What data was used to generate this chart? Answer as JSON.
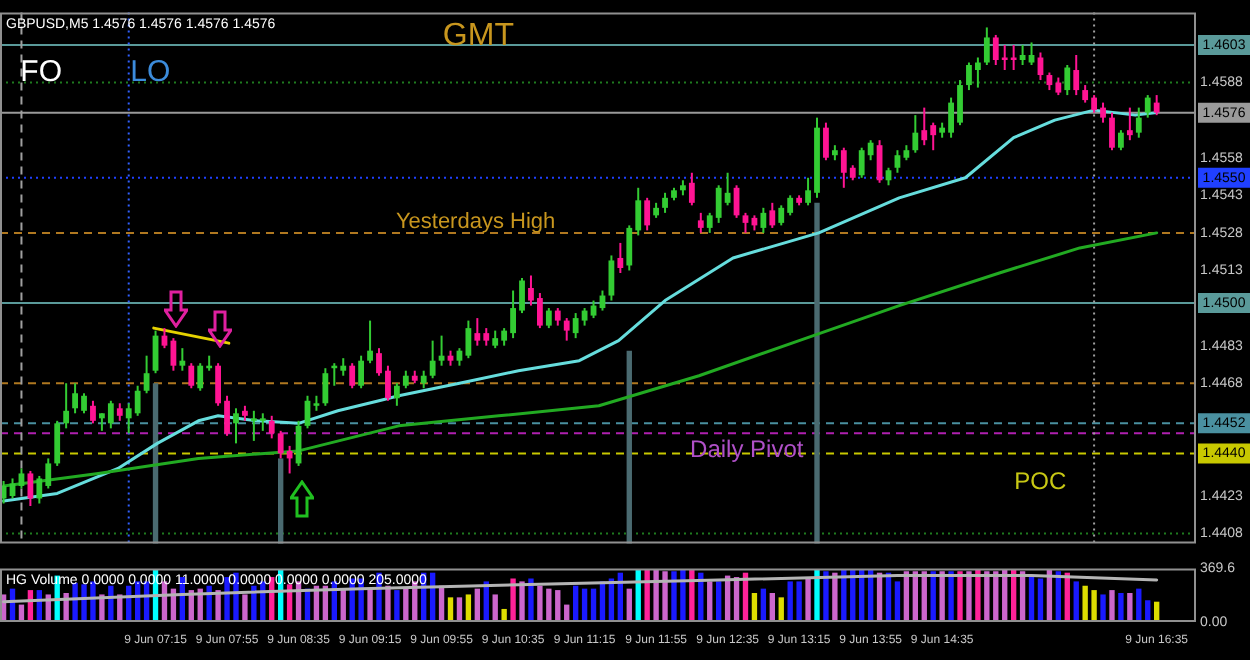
{
  "chart_data": [
    {
      "type": "candlestick",
      "title": "GBPUSD,M5 1.4576 1.4576 1.4576 1.4576",
      "xlim": [
        "--06-09T05:48",
        "--06-09T16:57"
      ],
      "ylim": [
        1.4404,
        1.4616
      ],
      "yticks": [
        1.4408,
        1.4423,
        1.4468,
        1.4483,
        1.4513,
        1.4528,
        1.4543,
        1.4558,
        1.4588
      ],
      "tick_labels": "y",
      "ref_lines": [
        {
          "axis": "y",
          "value": 1.4603,
          "label": "1.4603",
          "color": "#5a9a9a",
          "line_style": "solid"
        },
        {
          "axis": "y",
          "value": 1.4588,
          "color": "#1f7a1f",
          "line_style": "dotted"
        },
        {
          "axis": "y",
          "value": 1.4576,
          "label": "1.4576",
          "color": "#9a9a9a",
          "line_style": "solid"
        },
        {
          "axis": "y",
          "value": 1.455,
          "label": "1.4550",
          "color": "#2040ff",
          "line_style": "dotted"
        },
        {
          "axis": "y",
          "value": 1.4528,
          "color": "#b07820",
          "line_style": "dashed"
        },
        {
          "axis": "y",
          "value": 1.45,
          "label": "1.4500",
          "color": "#5a9a9a",
          "line_style": "solid"
        },
        {
          "axis": "y",
          "value": 1.4468,
          "color": "#b07820",
          "line_style": "dashed"
        },
        {
          "axis": "y",
          "value": 1.4452,
          "label": "1.4452",
          "color": "#4a90a0",
          "line_style": "dashed"
        },
        {
          "axis": "y",
          "value": 1.4448,
          "color": "#b020b0",
          "line_style": "dashed"
        },
        {
          "axis": "y",
          "value": 1.444,
          "label": "1.4440",
          "color": "#c8c800",
          "line_style": "dashed"
        },
        {
          "axis": "y",
          "value": 1.4408,
          "color": "#1f7a1f",
          "line_style": "dotted"
        },
        {
          "axis": "x",
          "value": "--06-09T06:00",
          "color": "#a0a0a0",
          "line_style": "dashed"
        },
        {
          "axis": "x",
          "value": "--06-09T07:00",
          "color": "#3060ff",
          "line_style": "dotted"
        },
        {
          "axis": "x",
          "value": "--06-09T16:00",
          "color": "#a0a0a0",
          "line_style": "dotted"
        }
      ],
      "annotations": [
        "GMT",
        "FO",
        "LO",
        "Yesterdays High",
        "Daily Pivot",
        "POC"
      ],
      "series": [
        {
          "type": "bar",
          "color": "#4a6a70",
          "x": [
            "--06-09T07:15",
            "--06-09T08:25",
            "--06-09T11:40",
            "--06-09T13:25"
          ],
          "base": [
            1.4404,
            1.4404,
            1.4404,
            1.4404
          ],
          "values": [
            0.0064,
            0.0034,
            0.0077,
            0.0136
          ]
        },
        {
          "type": "line",
          "color": "#22aa22",
          "x": [
            "--06-09T05:50",
            "--06-09T06:43",
            "--06-09T07:39",
            "--06-09T08:35",
            "--06-09T09:31",
            "--06-09T10:27",
            "--06-09T11:23",
            "--06-09T12:19",
            "--06-09T13:15",
            "--06-09T14:11",
            "--06-09T15:07",
            "--06-09T15:52",
            "--06-09T16:35"
          ],
          "values": [
            1.4427,
            1.4432,
            1.4438,
            1.4441,
            1.4451,
            1.4455,
            1.4459,
            1.4471,
            1.4485,
            1.4499,
            1.4512,
            1.4522,
            1.4528
          ]
        },
        {
          "type": "line",
          "color": "#66dddd",
          "x": [
            "--06-09T05:50",
            "--06-09T06:20",
            "--06-09T06:54",
            "--06-09T07:16",
            "--06-09T07:39",
            "--06-09T07:50",
            "--06-09T08:12",
            "--06-09T08:35",
            "--06-09T08:57",
            "--06-09T09:20",
            "--06-09T09:31",
            "--06-09T10:05",
            "--06-09T10:38",
            "--06-09T11:12",
            "--06-09T11:34",
            "--06-09T12:00",
            "--06-09T12:38",
            "--06-09T13:26",
            "--06-09T14:11",
            "--06-09T14:48",
            "--06-09T15:15",
            "--06-09T15:38",
            "--06-09T16:00",
            "--06-09T16:23",
            "--06-09T16:35"
          ],
          "values": [
            1.4421,
            1.4424,
            1.4434,
            1.4444,
            1.4453,
            1.4455,
            1.4453,
            1.4452,
            1.4457,
            1.4461,
            1.4463,
            1.4468,
            1.4473,
            1.4477,
            1.4485,
            1.4501,
            1.4518,
            1.4528,
            1.4542,
            1.455,
            1.4566,
            1.4573,
            1.4577,
            1.4575,
            1.4576
          ]
        },
        {
          "type": "line",
          "color": "#e6d200",
          "x": [
            "--06-09T07:14",
            "--06-09T07:56"
          ],
          "values": [
            1.449,
            1.4484
          ]
        },
        {
          "color": "#33cc33",
          "x": [
            "--06-09T05:50",
            "--06-09T05:55",
            "--06-09T06:00",
            "--06-09T06:10",
            "--06-09T06:15",
            "--06-09T06:20",
            "--06-09T06:25",
            "--06-09T06:30",
            "--06-09T06:35",
            "--06-09T06:45",
            "--06-09T06:50",
            "--06-09T07:00",
            "--06-09T07:05",
            "--06-09T07:10",
            "--06-09T07:15",
            "--06-09T07:30",
            "--06-09T07:40",
            "--06-09T07:45",
            "--06-09T08:00",
            "--06-09T08:10",
            "--06-09T08:15",
            "--06-09T08:35",
            "--06-09T08:40",
            "--06-09T08:45",
            "--06-09T08:50",
            "--06-09T08:55",
            "--06-09T09:00",
            "--06-09T09:10",
            "--06-09T09:15",
            "--06-09T09:30",
            "--06-09T09:35",
            "--06-09T09:45",
            "--06-09T09:50",
            "--06-09T09:55",
            "--06-09T10:05",
            "--06-09T10:10",
            "--06-09T10:25",
            "--06-09T10:30",
            "--06-09T10:35",
            "--06-09T10:40",
            "--06-09T10:55",
            "--06-09T11:10",
            "--06-09T11:15",
            "--06-09T11:20",
            "--06-09T11:25",
            "--06-09T11:30",
            "--06-09T11:40",
            "--06-09T11:45",
            "--06-09T11:55",
            "--06-09T12:00",
            "--06-09T12:05",
            "--06-09T12:10",
            "--06-09T12:25",
            "--06-09T12:30",
            "--06-09T12:35",
            "--06-09T12:55",
            "--06-09T13:05",
            "--06-09T13:10",
            "--06-09T13:20",
            "--06-09T13:25",
            "--06-09T13:35",
            "--06-09T13:50",
            "--06-09T13:55",
            "--06-09T14:05",
            "--06-09T14:10",
            "--06-09T14:15",
            "--06-09T14:20",
            "--06-09T14:35",
            "--06-09T14:40",
            "--06-09T14:45",
            "--06-09T14:50",
            "--06-09T14:55",
            "--06-09T15:00",
            "--06-09T15:20",
            "--06-09T15:25",
            "--06-09T15:45",
            "--06-09T16:15",
            "--06-09T16:25",
            "--06-09T16:30"
          ],
          "ohlc": [
            [
              1.4422,
              1.4429,
              1.442,
              1.4427
            ],
            [
              1.4423,
              1.443,
              1.4422,
              1.4428
            ],
            [
              1.4427,
              1.4434,
              1.4426,
              1.4432
            ],
            [
              1.4422,
              1.4431,
              1.442,
              1.443
            ],
            [
              1.4427,
              1.4438,
              1.4426,
              1.4436
            ],
            [
              1.4436,
              1.4453,
              1.4435,
              1.4452
            ],
            [
              1.4452,
              1.4468,
              1.445,
              1.4457
            ],
            [
              1.4458,
              1.4468,
              1.4456,
              1.4464
            ],
            [
              1.4457,
              1.4464,
              1.4456,
              1.4463
            ],
            [
              1.4454,
              1.4456,
              1.4449,
              1.4456
            ],
            [
              1.4452,
              1.4461,
              1.445,
              1.446
            ],
            [
              1.4454,
              1.446,
              1.4448,
              1.4458
            ],
            [
              1.4456,
              1.4467,
              1.4455,
              1.4465
            ],
            [
              1.4465,
              1.4479,
              1.4464,
              1.4472
            ],
            [
              1.4473,
              1.4489,
              1.4472,
              1.4487
            ],
            [
              1.4475,
              1.4482,
              1.4473,
              1.4477
            ],
            [
              1.4466,
              1.4476,
              1.4465,
              1.4475
            ],
            [
              1.4474,
              1.4479,
              1.4473,
              1.4475
            ],
            [
              1.4452,
              1.4458,
              1.4444,
              1.4456
            ],
            [
              1.4453,
              1.4457,
              1.4445,
              1.4454
            ],
            [
              1.4453,
              1.4456,
              1.4449,
              1.4454
            ],
            [
              1.4436,
              1.4453,
              1.4435,
              1.4451
            ],
            [
              1.4451,
              1.4463,
              1.445,
              1.4461
            ],
            [
              1.4459,
              1.4463,
              1.4457,
              1.446
            ],
            [
              1.446,
              1.4474,
              1.4459,
              1.4472
            ],
            [
              1.4474,
              1.4476,
              1.4467,
              1.4475
            ],
            [
              1.4473,
              1.4478,
              1.4471,
              1.4475
            ],
            [
              1.4467,
              1.4479,
              1.4466,
              1.4477
            ],
            [
              1.4477,
              1.4493,
              1.4476,
              1.4481
            ],
            [
              1.4462,
              1.4468,
              1.4459,
              1.4467
            ],
            [
              1.4467,
              1.4473,
              1.4466,
              1.4471
            ],
            [
              1.4468,
              1.4473,
              1.4466,
              1.4471
            ],
            [
              1.4471,
              1.4485,
              1.447,
              1.4477
            ],
            [
              1.4477,
              1.4487,
              1.4475,
              1.4479
            ],
            [
              1.4477,
              1.4482,
              1.4475,
              1.4481
            ],
            [
              1.4479,
              1.4493,
              1.4478,
              1.449
            ],
            [
              1.4483,
              1.4489,
              1.4482,
              1.4486
            ],
            [
              1.4485,
              1.449,
              1.4483,
              1.4489
            ],
            [
              1.4488,
              1.4505,
              1.4486,
              1.4498
            ],
            [
              1.4497,
              1.451,
              1.4496,
              1.4509
            ],
            [
              1.4491,
              1.4498,
              1.449,
              1.4497
            ],
            [
              1.4488,
              1.4496,
              1.4486,
              1.4494
            ],
            [
              1.4493,
              1.4498,
              1.4491,
              1.4497
            ],
            [
              1.4495,
              1.4501,
              1.4494,
              1.4499
            ],
            [
              1.4498,
              1.4505,
              1.4497,
              1.4503
            ],
            [
              1.4503,
              1.4519,
              1.4501,
              1.4517
            ],
            [
              1.4515,
              1.4531,
              1.4513,
              1.453
            ],
            [
              1.4529,
              1.4546,
              1.4527,
              1.4541
            ],
            [
              1.4535,
              1.454,
              1.4534,
              1.4538
            ],
            [
              1.4538,
              1.4544,
              1.4536,
              1.4542
            ],
            [
              1.4542,
              1.4546,
              1.4541,
              1.4545
            ],
            [
              1.4545,
              1.4549,
              1.4543,
              1.4547
            ],
            [
              1.453,
              1.4536,
              1.4528,
              1.4535
            ],
            [
              1.4534,
              1.4547,
              1.4532,
              1.4546
            ],
            [
              1.454,
              1.4552,
              1.4539,
              1.4544
            ],
            [
              1.453,
              1.4538,
              1.4528,
              1.4536
            ],
            [
              1.4532,
              1.4539,
              1.4531,
              1.4538
            ],
            [
              1.4536,
              1.4543,
              1.4535,
              1.4542
            ],
            [
              1.454,
              1.455,
              1.4539,
              1.4545
            ],
            [
              1.4544,
              1.4574,
              1.4542,
              1.457
            ],
            [
              1.4559,
              1.4563,
              1.4557,
              1.4561
            ],
            [
              1.4551,
              1.4562,
              1.455,
              1.4561
            ],
            [
              1.4559,
              1.4565,
              1.4557,
              1.4564
            ],
            [
              1.4549,
              1.4554,
              1.4547,
              1.4553
            ],
            [
              1.4554,
              1.4561,
              1.4552,
              1.4559
            ],
            [
              1.4558,
              1.4563,
              1.4557,
              1.4561
            ],
            [
              1.4561,
              1.4575,
              1.456,
              1.4568
            ],
            [
              1.4568,
              1.4572,
              1.4566,
              1.457
            ],
            [
              1.4568,
              1.4582,
              1.4566,
              1.458
            ],
            [
              1.4572,
              1.4589,
              1.4571,
              1.4587
            ],
            [
              1.4587,
              1.4596,
              1.4585,
              1.4595
            ],
            [
              1.4593,
              1.4598,
              1.4586,
              1.4596
            ],
            [
              1.4596,
              1.461,
              1.4595,
              1.4606
            ],
            [
              1.4597,
              1.4603,
              1.4595,
              1.4599
            ],
            [
              1.4596,
              1.4604,
              1.4595,
              1.4599
            ],
            [
              1.4585,
              1.4595,
              1.4583,
              1.4594
            ],
            [
              1.4562,
              1.4569,
              1.4561,
              1.4568
            ],
            [
              1.4568,
              1.4578,
              1.4566,
              1.4574
            ],
            [
              1.4576,
              1.4583,
              1.4574,
              1.4582
            ]
          ]
        },
        {
          "color": "#ff1493",
          "x": [
            "--06-09T06:05",
            "--06-09T06:40",
            "--06-09T06:55",
            "--06-09T07:20",
            "--06-09T07:25",
            "--06-09T07:35",
            "--06-09T07:50",
            "--06-09T07:55",
            "--06-09T08:05",
            "--06-09T08:20",
            "--06-09T08:25",
            "--06-09T08:30",
            "--06-09T09:05",
            "--06-09T09:20",
            "--06-09T09:25",
            "--06-09T09:40",
            "--06-09T10:00",
            "--06-09T10:15",
            "--06-09T10:20",
            "--06-09T10:45",
            "--06-09T10:50",
            "--06-09T11:00",
            "--06-09T11:05",
            "--06-09T11:35",
            "--06-09T11:50",
            "--06-09T12:15",
            "--06-09T12:20",
            "--06-09T12:40",
            "--06-09T12:45",
            "--06-09T12:50",
            "--06-09T13:00",
            "--06-09T13:15",
            "--06-09T13:30",
            "--06-09T13:40",
            "--06-09T13:45",
            "--06-09T14:00",
            "--06-09T14:25",
            "--06-09T14:30",
            "--06-09T15:05",
            "--06-09T15:10",
            "--06-09T15:15",
            "--06-09T15:30",
            "--06-09T15:35",
            "--06-09T15:40",
            "--06-09T15:50",
            "--06-09T15:55",
            "--06-09T16:00",
            "--06-09T16:05",
            "--06-09T16:10",
            "--06-09T16:20",
            "--06-09T16:35"
          ],
          "ohlc": [
            [
              1.4432,
              1.4433,
              1.4419,
              1.4422
            ],
            [
              1.4459,
              1.4461,
              1.4452,
              1.4453
            ],
            [
              1.4458,
              1.446,
              1.4453,
              1.4455
            ],
            [
              1.4487,
              1.449,
              1.4482,
              1.4483
            ],
            [
              1.4485,
              1.4486,
              1.4473,
              1.4475
            ],
            [
              1.4475,
              1.4476,
              1.4466,
              1.4467
            ],
            [
              1.4475,
              1.4476,
              1.4459,
              1.446
            ],
            [
              1.4461,
              1.4463,
              1.4447,
              1.4448
            ],
            [
              1.4457,
              1.4459,
              1.4453,
              1.4455
            ],
            [
              1.4453,
              1.4455,
              1.4446,
              1.4448
            ],
            [
              1.4448,
              1.4449,
              1.4438,
              1.444
            ],
            [
              1.4441,
              1.4443,
              1.4432,
              1.4438
            ],
            [
              1.4475,
              1.4476,
              1.4466,
              1.4467
            ],
            [
              1.448,
              1.4482,
              1.4471,
              1.4472
            ],
            [
              1.4473,
              1.4475,
              1.4461,
              1.4462
            ],
            [
              1.4471,
              1.4473,
              1.4468,
              1.4469
            ],
            [
              1.4479,
              1.4481,
              1.4475,
              1.4477
            ],
            [
              1.4488,
              1.4494,
              1.4483,
              1.4485
            ],
            [
              1.4488,
              1.449,
              1.4483,
              1.4485
            ],
            [
              1.4506,
              1.4511,
              1.4499,
              1.4501
            ],
            [
              1.4502,
              1.4504,
              1.449,
              1.4491
            ],
            [
              1.4497,
              1.4498,
              1.4491,
              1.4493
            ],
            [
              1.4493,
              1.4494,
              1.4485,
              1.4489
            ],
            [
              1.4518,
              1.4524,
              1.4512,
              1.4514
            ],
            [
              1.4541,
              1.4542,
              1.4529,
              1.4531
            ],
            [
              1.4548,
              1.4552,
              1.4539,
              1.454
            ],
            [
              1.4533,
              1.4536,
              1.4528,
              1.453
            ],
            [
              1.4546,
              1.4547,
              1.4534,
              1.4535
            ],
            [
              1.4535,
              1.4536,
              1.4528,
              1.4532
            ],
            [
              1.4534,
              1.4535,
              1.4529,
              1.4531
            ],
            [
              1.4537,
              1.454,
              1.453,
              1.4531
            ],
            [
              1.4542,
              1.4543,
              1.4539,
              1.454
            ],
            [
              1.457,
              1.4572,
              1.4557,
              1.4558
            ],
            [
              1.4561,
              1.4562,
              1.4546,
              1.4552
            ],
            [
              1.4554,
              1.4555,
              1.4549,
              1.455
            ],
            [
              1.4563,
              1.4565,
              1.4548,
              1.4549
            ],
            [
              1.4569,
              1.4578,
              1.4563,
              1.4565
            ],
            [
              1.4571,
              1.4572,
              1.4561,
              1.4567
            ],
            [
              1.4606,
              1.4607,
              1.4595,
              1.4597
            ],
            [
              1.4598,
              1.4603,
              1.4593,
              1.4597
            ],
            [
              1.4598,
              1.4603,
              1.4593,
              1.4597
            ],
            [
              1.4598,
              1.46,
              1.4589,
              1.4591
            ],
            [
              1.4591,
              1.4592,
              1.4585,
              1.4587
            ],
            [
              1.4588,
              1.459,
              1.4583,
              1.4584
            ],
            [
              1.4593,
              1.4599,
              1.4583,
              1.4585
            ],
            [
              1.4585,
              1.4587,
              1.458,
              1.4581
            ],
            [
              1.4582,
              1.4583,
              1.4576,
              1.4577
            ],
            [
              1.4578,
              1.458,
              1.4572,
              1.4574
            ],
            [
              1.4574,
              1.4576,
              1.4561,
              1.4562
            ],
            [
              1.4569,
              1.4578,
              1.4565,
              1.4567
            ],
            [
              1.458,
              1.4583,
              1.4575,
              1.4576
            ]
          ]
        }
      ]
    },
    {
      "type": "bar",
      "title": "HG Volume 0.0000 0.0000 11.0000 0.0000 0.0000 0.0000 205.0000",
      "xlim": [
        "--06-09T05:48",
        "--06-09T16:57"
      ],
      "ylim": [
        0,
        369.6
      ],
      "yticks": [
        369.6,
        {
          "value": 0,
          "label": "0.00"
        }
      ],
      "xticks": [
        {
          "value": "--06-09T07:15",
          "label": "9 Jun 07:15"
        },
        {
          "value": "--06-09T07:55",
          "label": "9 Jun 07:55"
        },
        {
          "value": "--06-09T08:35",
          "label": "9 Jun 08:35"
        },
        {
          "value": "--06-09T09:15",
          "label": "9 Jun 09:15"
        },
        {
          "value": "--06-09T09:55",
          "label": "9 Jun 09:55"
        },
        {
          "value": "--06-09T10:35",
          "label": "9 Jun 10:35"
        },
        {
          "value": "--06-09T11:15",
          "label": "9 Jun 11:15"
        },
        {
          "value": "--06-09T11:55",
          "label": "9 Jun 11:55"
        },
        {
          "value": "--06-09T12:35",
          "label": "9 Jun 12:35"
        },
        {
          "value": "--06-09T13:15",
          "label": "9 Jun 13:15"
        },
        {
          "value": "--06-09T13:55",
          "label": "9 Jun 13:55"
        },
        {
          "value": "--06-09T14:35",
          "label": "9 Jun 14:35"
        },
        {
          "value": "--06-09T16:35",
          "label": "9 Jun 16:35"
        }
      ],
      "series": [
        {
          "x": [
            "--06-09T05:50",
            "--06-09T05:55",
            "--06-09T06:00",
            "--06-09T06:05",
            "--06-09T06:10",
            "--06-09T06:15",
            "--06-09T06:20",
            "--06-09T06:25",
            "--06-09T06:30",
            "--06-09T06:35",
            "--06-09T06:40",
            "--06-09T06:45",
            "--06-09T06:50",
            "--06-09T06:55",
            "--06-09T07:00",
            "--06-09T07:05",
            "--06-09T07:10",
            "--06-09T07:15",
            "--06-09T07:20",
            "--06-09T07:25",
            "--06-09T07:30",
            "--06-09T07:35",
            "--06-09T07:40",
            "--06-09T07:45",
            "--06-09T07:50",
            "--06-09T07:55",
            "--06-09T08:00",
            "--06-09T08:05",
            "--06-09T08:10",
            "--06-09T08:15",
            "--06-09T08:20",
            "--06-09T08:25",
            "--06-09T08:30",
            "--06-09T08:35",
            "--06-09T08:40",
            "--06-09T08:45",
            "--06-09T08:50",
            "--06-09T08:55",
            "--06-09T09:00",
            "--06-09T09:05",
            "--06-09T09:10",
            "--06-09T09:15",
            "--06-09T09:20",
            "--06-09T09:25",
            "--06-09T09:30",
            "--06-09T09:35",
            "--06-09T09:40",
            "--06-09T09:45",
            "--06-09T09:50",
            "--06-09T09:55",
            "--06-09T10:00",
            "--06-09T10:05",
            "--06-09T10:10",
            "--06-09T10:15",
            "--06-09T10:20",
            "--06-09T10:25",
            "--06-09T10:30",
            "--06-09T10:35",
            "--06-09T10:40",
            "--06-09T10:45",
            "--06-09T10:50",
            "--06-09T10:55",
            "--06-09T11:00",
            "--06-09T11:05",
            "--06-09T11:10",
            "--06-09T11:15",
            "--06-09T11:20",
            "--06-09T11:25",
            "--06-09T11:30",
            "--06-09T11:35",
            "--06-09T11:40",
            "--06-09T11:45",
            "--06-09T11:50",
            "--06-09T11:55",
            "--06-09T12:00",
            "--06-09T12:05",
            "--06-09T12:10",
            "--06-09T12:15",
            "--06-09T12:20",
            "--06-09T12:25",
            "--06-09T12:30",
            "--06-09T12:35",
            "--06-09T12:40",
            "--06-09T12:45",
            "--06-09T12:50",
            "--06-09T12:55",
            "--06-09T13:00",
            "--06-09T13:05",
            "--06-09T13:10",
            "--06-09T13:15",
            "--06-09T13:20",
            "--06-09T13:25",
            "--06-09T13:30",
            "--06-09T13:35",
            "--06-09T13:40",
            "--06-09T13:45",
            "--06-09T13:50",
            "--06-09T13:55",
            "--06-09T14:00",
            "--06-09T14:05",
            "--06-09T14:10",
            "--06-09T14:15",
            "--06-09T14:20",
            "--06-09T14:25",
            "--06-09T14:30",
            "--06-09T14:35",
            "--06-09T14:40",
            "--06-09T14:45",
            "--06-09T14:50",
            "--06-09T14:55",
            "--06-09T15:00",
            "--06-09T15:05",
            "--06-09T15:10",
            "--06-09T15:15",
            "--06-09T15:20",
            "--06-09T15:25",
            "--06-09T15:30",
            "--06-09T15:35",
            "--06-09T15:40",
            "--06-09T15:45",
            "--06-09T15:50",
            "--06-09T15:55",
            "--06-09T16:00",
            "--06-09T16:05",
            "--06-09T16:10",
            "--06-09T16:15",
            "--06-09T16:20",
            "--06-09T16:25",
            "--06-09T16:30",
            "--06-09T16:35"
          ],
          "values": [
            190,
            230,
            120,
            220,
            220,
            190,
            320,
            200,
            270,
            260,
            280,
            190,
            250,
            190,
            250,
            280,
            280,
            360,
            280,
            230,
            310,
            220,
            230,
            250,
            220,
            310,
            340,
            190,
            250,
            280,
            310,
            360,
            260,
            280,
            230,
            250,
            250,
            280,
            230,
            300,
            300,
            230,
            340,
            250,
            220,
            230,
            280,
            340,
            340,
            250,
            170,
            170,
            190,
            230,
            280,
            190,
            90,
            300,
            280,
            300,
            250,
            230,
            220,
            120,
            250,
            230,
            230,
            280,
            300,
            340,
            230,
            360,
            360,
            360,
            350,
            350,
            360,
            360,
            340,
            280,
            280,
            320,
            310,
            340,
            200,
            230,
            200,
            170,
            280,
            280,
            310,
            360,
            350,
            340,
            360,
            360,
            360,
            360,
            340,
            340,
            280,
            350,
            350,
            350,
            350,
            350,
            350,
            350,
            350,
            360,
            350,
            350,
            360,
            360,
            350,
            320,
            300,
            360,
            350,
            340,
            280,
            250,
            220,
            190,
            220,
            200,
            200,
            230,
            150,
            140
          ],
          "colors": [
            "#cc66cc",
            "#1a1aff",
            "#cc66cc",
            "#ff2299",
            "#1a1aff",
            "#cc66cc",
            "#00ffff",
            "#cc66cc",
            "#1a1aff",
            "#1a1aff",
            "#1a1aff",
            "#cc66cc",
            "#1a1aff",
            "#cc66cc",
            "#1a1aff",
            "#1a1aff",
            "#1a1aff",
            "#00ffff",
            "#cc66cc",
            "#cc66cc",
            "#1a1aff",
            "#cc66cc",
            "#cc66cc",
            "#1a1aff",
            "#cc66cc",
            "#1a1aff",
            "#1a1aff",
            "#cc66cc",
            "#1a1aff",
            "#1a1aff",
            "#ff2299",
            "#00ffff",
            "#ff2299",
            "#cc66cc",
            "#1a1aff",
            "#cc66cc",
            "#cc66cc",
            "#1a1aff",
            "#cc66cc",
            "#1a1aff",
            "#1a1aff",
            "#cc66cc",
            "#1a1aff",
            "#cc66cc",
            "#1a1aff",
            "#cc66cc",
            "#cc66cc",
            "#1a1aff",
            "#1a1aff",
            "#cc66cc",
            "#dddd00",
            "#cc66cc",
            "#dddd00",
            "#cc66cc",
            "#1a1aff",
            "#cc66cc",
            "#dddd00",
            "#ff2299",
            "#cc66cc",
            "#1a1aff",
            "#cc66cc",
            "#cc66cc",
            "#cc66cc",
            "#cc66cc",
            "#1a1aff",
            "#1a1aff",
            "#1a1aff",
            "#1a1aff",
            "#1a1aff",
            "#1a1aff",
            "#cc66cc",
            "#00ffff",
            "#ff2299",
            "#cc66cc",
            "#cc66cc",
            "#1a1aff",
            "#1a1aff",
            "#ff2299",
            "#1a1aff",
            "#cc66cc",
            "#1a1aff",
            "#cc66cc",
            "#cc66cc",
            "#ff2299",
            "#dddd00",
            "#1a1aff",
            "#cc66cc",
            "#dddd00",
            "#1a1aff",
            "#1a1aff",
            "#cc66cc",
            "#00ffff",
            "#1a1aff",
            "#cc66cc",
            "#1a1aff",
            "#1a1aff",
            "#1a1aff",
            "#1a1aff",
            "#cc66cc",
            "#1a1aff",
            "#1a1aff",
            "#cc66cc",
            "#cc66cc",
            "#cc66cc",
            "#1a1aff",
            "#cc66cc",
            "#1a1aff",
            "#ff2299",
            "#cc66cc",
            "#ff2299",
            "#cc66cc",
            "#cc66cc",
            "#cc66cc",
            "#ff2299",
            "#cc66cc",
            "#1a1aff",
            "#1a1aff",
            "#cc66cc",
            "#1a1aff",
            "#ff2299",
            "#1a1aff",
            "#dddd00",
            "#dddd00",
            "#1a1aff",
            "#cc66cc",
            "#1a1aff",
            "#cc66cc",
            "#1a1aff",
            "#1a1aff",
            "#dddd00"
          ]
        },
        {
          "type": "line",
          "color": "#b4b4b4",
          "x": [
            "--06-09T05:50",
            "--06-09T07:30",
            "--06-09T09:10",
            "--06-09T10:50",
            "--06-09T12:30",
            "--06-09T14:10",
            "--06-09T15:25",
            "--06-09T16:35"
          ],
          "values": [
            140,
            190,
            230,
            260,
            290,
            320,
            320,
            290
          ]
        }
      ]
    }
  ]
}
